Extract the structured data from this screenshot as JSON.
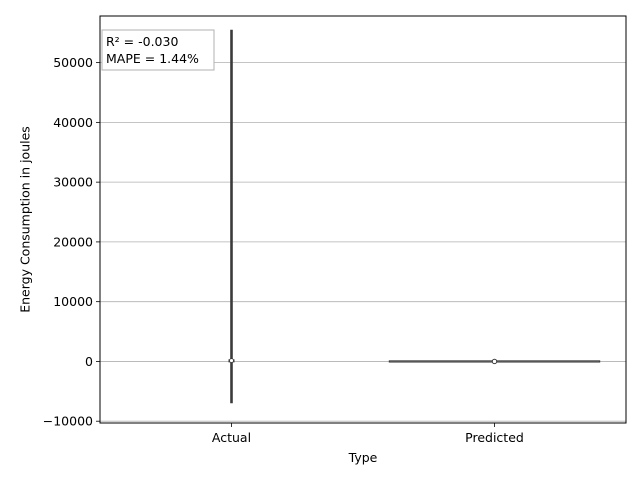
{
  "chart_data": {
    "type": "violin",
    "categories": [
      "Actual",
      "Predicted"
    ],
    "series": [
      {
        "category": "Actual",
        "min": -7000,
        "max": 55500,
        "q1": 0,
        "median": 150,
        "q3": 350,
        "color": "#3b3b3b"
      },
      {
        "category": "Predicted",
        "min": 0,
        "max": 0,
        "q1": 0,
        "median": 0,
        "q3": 0,
        "color": "#3b3b3b"
      }
    ],
    "title": "",
    "xlabel": "Type",
    "ylabel": "Energy Consumption in joules",
    "ylim": [
      -10300,
      57800
    ],
    "yticks": [
      -10000,
      0,
      10000,
      20000,
      30000,
      40000,
      50000
    ],
    "ytick_labels": [
      "−10000",
      "0",
      "10000",
      "20000",
      "30000",
      "40000",
      "50000"
    ],
    "grid": "y",
    "annotation": {
      "lines": [
        "R² = -0.030",
        "MAPE = 1.44%"
      ],
      "placement": "top-left"
    }
  }
}
